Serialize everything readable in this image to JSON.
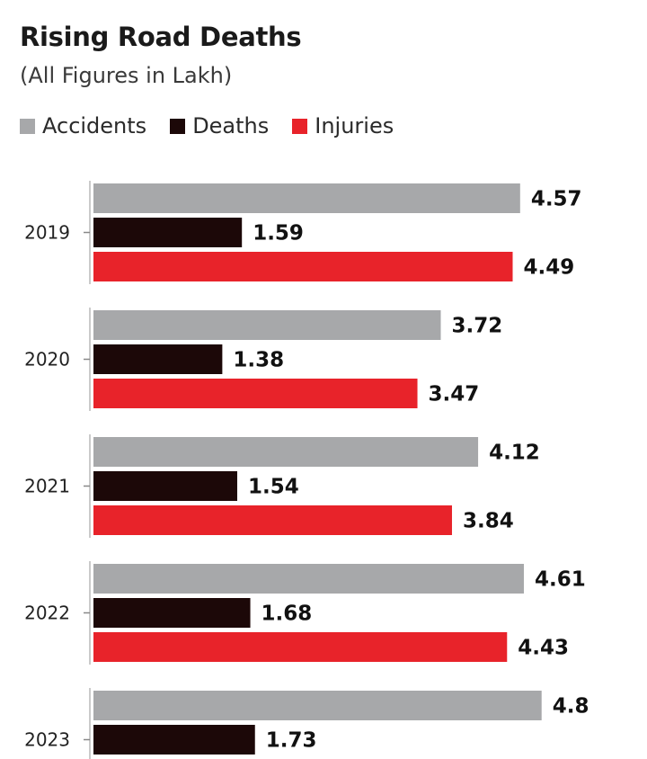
{
  "chart_data": {
    "type": "bar",
    "orientation": "horizontal",
    "title": "Rising Road Deaths",
    "subtitle": "(All Figures in Lakh)",
    "categories": [
      "2019",
      "2020",
      "2021",
      "2022",
      "2023"
    ],
    "series": [
      {
        "name": "Accidents",
        "color": "#a7a8aa",
        "values": [
          4.57,
          3.72,
          4.12,
          4.61,
          4.8
        ]
      },
      {
        "name": "Deaths",
        "color": "#1c0808",
        "values": [
          1.59,
          1.38,
          1.54,
          1.68,
          1.73
        ]
      },
      {
        "name": "Injuries",
        "color": "#e8232a",
        "values": [
          4.49,
          3.47,
          3.84,
          4.43,
          null
        ]
      }
    ],
    "value_labels": [
      [
        "4.57",
        "1.59",
        "4.49"
      ],
      [
        "3.72",
        "1.38",
        "3.47"
      ],
      [
        "4.12",
        "1.54",
        "3.84"
      ],
      [
        "4.61",
        "1.68",
        "4.43"
      ],
      [
        "4.8",
        "1.73",
        ""
      ]
    ],
    "legend_position": "top-left",
    "grid": false
  }
}
